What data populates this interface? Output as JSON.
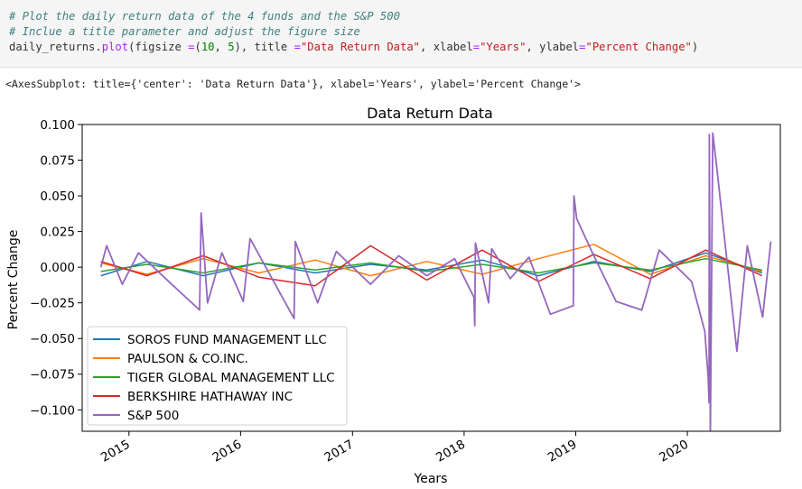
{
  "code_cell": {
    "comment1": "# Plot the daily return data of the 4 funds and the S&P 500",
    "comment2": "# Inclue a title parameter and adjust the figure size",
    "code_a": "daily_returns.",
    "code_fn": "plot",
    "code_b": "(figsize ",
    "code_eq1": "=",
    "code_c": "(",
    "code_n1": "10",
    "code_d": ", ",
    "code_n2": "5",
    "code_e": "), title ",
    "code_eq2": "=",
    "code_s1": "\"Data Return Data\"",
    "code_f": ", xlabel",
    "code_eq3": "=",
    "code_s2": "\"Years\"",
    "code_g": ", ylabel",
    "code_eq4": "=",
    "code_s3": "\"Percent Change\"",
    "code_h": ")"
  },
  "output_text": "<AxesSubplot: title={'center': 'Data Return Data'}, xlabel='Years', ylabel='Percent Change'>",
  "chart_data": {
    "type": "line",
    "title": "Data Return Data",
    "xlabel": "Years",
    "ylabel": "Percent Change",
    "xlim": [
      "2014-08-01",
      "2020-10-31"
    ],
    "ylim": [
      -0.115,
      0.1
    ],
    "x_ticks": [
      "2015",
      "2016",
      "2017",
      "2018",
      "2019",
      "2020"
    ],
    "y_ticks": [
      "0.100",
      "0.075",
      "0.050",
      "0.025",
      "0.000",
      "−0.025",
      "−0.050",
      "−0.075",
      "−0.100"
    ],
    "y_tick_values": [
      0.1,
      0.075,
      0.05,
      0.025,
      0.0,
      -0.025,
      -0.05,
      -0.075,
      -0.1
    ],
    "grid": false,
    "legend_position": "lower-left",
    "series": [
      {
        "name": "SOROS FUND MANAGEMENT LLC",
        "color": "#1f77b4",
        "x": [
          "2014-10-01",
          "2015-03-01",
          "2015-09-01",
          "2016-03-01",
          "2016-09-01",
          "2017-03-01",
          "2017-09-01",
          "2018-03-01",
          "2018-09-01",
          "2019-03-01",
          "2019-09-01",
          "2020-03-01",
          "2020-09-01"
        ],
        "values": [
          -0.006,
          0.004,
          -0.006,
          0.003,
          -0.004,
          0.002,
          -0.002,
          0.005,
          -0.006,
          0.004,
          -0.003,
          0.01,
          -0.004
        ]
      },
      {
        "name": "PAULSON & CO.INC.",
        "color": "#ff7f0e",
        "x": [
          "2014-10-01",
          "2015-03-01",
          "2015-09-01",
          "2016-03-01",
          "2016-09-01",
          "2017-03-01",
          "2017-09-01",
          "2018-03-01",
          "2018-09-01",
          "2019-03-01",
          "2019-09-01",
          "2020-03-01",
          "2020-09-01"
        ],
        "values": [
          0.003,
          -0.005,
          0.006,
          -0.004,
          0.005,
          -0.006,
          0.004,
          -0.005,
          0.006,
          0.016,
          -0.005,
          0.008,
          -0.003
        ]
      },
      {
        "name": "TIGER GLOBAL MANAGEMENT LLC",
        "color": "#2ca02c",
        "x": [
          "2014-10-01",
          "2015-03-01",
          "2015-09-01",
          "2016-03-01",
          "2016-09-01",
          "2017-03-01",
          "2017-09-01",
          "2018-03-01",
          "2018-09-01",
          "2019-03-01",
          "2019-09-01",
          "2020-03-01",
          "2020-09-01"
        ],
        "values": [
          -0.003,
          0.002,
          -0.004,
          0.003,
          -0.002,
          0.003,
          -0.003,
          0.002,
          -0.004,
          0.003,
          -0.002,
          0.006,
          -0.002
        ]
      },
      {
        "name": "BERKSHIRE HATHAWAY INC",
        "color": "#d62728",
        "x": [
          "2014-10-01",
          "2015-03-01",
          "2015-09-01",
          "2016-03-01",
          "2016-09-01",
          "2017-03-01",
          "2017-09-01",
          "2018-03-01",
          "2018-09-01",
          "2019-03-01",
          "2019-09-01",
          "2020-03-01",
          "2020-09-01"
        ],
        "values": [
          0.004,
          -0.006,
          0.008,
          -0.007,
          -0.013,
          0.015,
          -0.009,
          0.012,
          -0.01,
          0.009,
          -0.008,
          0.012,
          -0.006
        ]
      },
      {
        "name": "S&P 500",
        "color": "#9467bd",
        "x": [
          "2014-10-01",
          "2014-10-20",
          "2014-12-10",
          "2015-02-01",
          "2015-05-01",
          "2015-08-20",
          "2015-08-25",
          "2015-09-15",
          "2015-11-01",
          "2016-01-10",
          "2016-02-01",
          "2016-06-24",
          "2016-06-28",
          "2016-09-09",
          "2016-11-09",
          "2017-03-01",
          "2017-06-01",
          "2017-09-01",
          "2017-12-01",
          "2018-02-02",
          "2018-02-05",
          "2018-02-07",
          "2018-03-22",
          "2018-04-01",
          "2018-06-01",
          "2018-08-01",
          "2018-10-10",
          "2018-12-24",
          "2018-12-26",
          "2019-01-04",
          "2019-03-01",
          "2019-05-13",
          "2019-08-05",
          "2019-10-01",
          "2020-01-15",
          "2020-02-27",
          "2020-03-09",
          "2020-03-12",
          "2020-03-13",
          "2020-03-16",
          "2020-03-24",
          "2020-04-06",
          "2020-06-11",
          "2020-07-15",
          "2020-09-03",
          "2020-09-30"
        ],
        "values": [
          0.0,
          0.015,
          -0.012,
          0.01,
          -0.008,
          -0.03,
          0.038,
          -0.025,
          0.01,
          -0.024,
          0.02,
          -0.036,
          0.018,
          -0.025,
          0.011,
          -0.012,
          0.008,
          -0.006,
          0.006,
          -0.021,
          -0.041,
          0.017,
          -0.025,
          0.013,
          -0.008,
          0.007,
          -0.033,
          -0.027,
          0.05,
          0.034,
          0.008,
          -0.024,
          -0.03,
          0.012,
          -0.01,
          -0.045,
          -0.077,
          -0.095,
          0.093,
          -0.12,
          0.094,
          0.07,
          -0.059,
          0.015,
          -0.035,
          0.018
        ]
      }
    ]
  }
}
